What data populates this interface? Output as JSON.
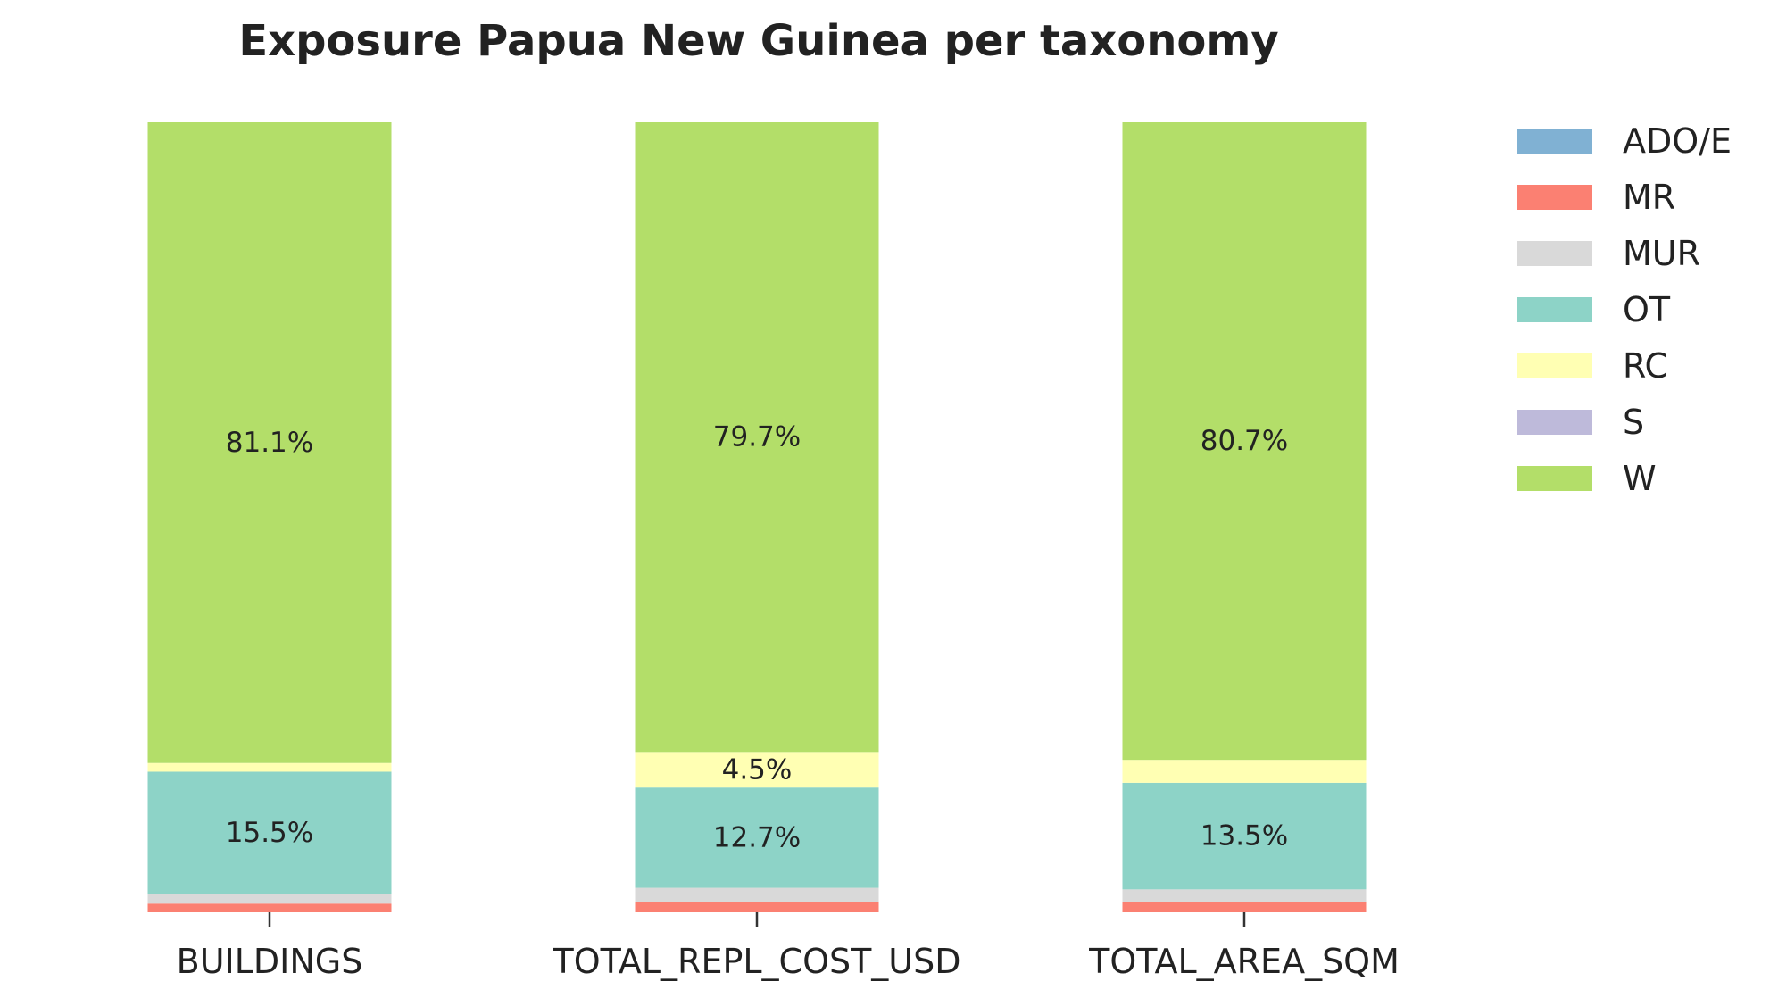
{
  "chart_data": {
    "type": "bar",
    "stacked": true,
    "title": "Exposure Papua New Guinea per taxonomy",
    "xlabel": "",
    "ylabel": "",
    "ylim": [
      0,
      100
    ],
    "unit": "%",
    "legend_position": "right",
    "grid": false,
    "categories": [
      "BUILDINGS",
      "TOTAL_REPL_COST_USD",
      "TOTAL_AREA_SQM"
    ],
    "series": [
      {
        "name": "ADO/E",
        "color": "#80b1d3",
        "values": [
          0.0,
          0.0,
          0.0
        ]
      },
      {
        "name": "MR",
        "color": "#fb8072",
        "values": [
          1.1,
          1.3,
          1.3
        ]
      },
      {
        "name": "MUR",
        "color": "#d9d9d9",
        "values": [
          1.2,
          1.8,
          1.6
        ]
      },
      {
        "name": "OT",
        "color": "#8dd3c7",
        "values": [
          15.5,
          12.7,
          13.5
        ]
      },
      {
        "name": "RC",
        "color": "#ffffb3",
        "values": [
          1.1,
          4.5,
          2.9
        ]
      },
      {
        "name": "S",
        "color": "#bebada",
        "values": [
          0.0,
          0.0,
          0.0
        ]
      },
      {
        "name": "W",
        "color": "#b3de69",
        "values": [
          81.1,
          79.7,
          80.7
        ]
      }
    ],
    "data_labels": [
      {
        "category_index": 0,
        "series_index": 3,
        "text": "15.5%"
      },
      {
        "category_index": 0,
        "series_index": 6,
        "text": "81.1%"
      },
      {
        "category_index": 1,
        "series_index": 3,
        "text": "12.7%"
      },
      {
        "category_index": 1,
        "series_index": 4,
        "text": "4.5%"
      },
      {
        "category_index": 1,
        "series_index": 6,
        "text": "79.7%"
      },
      {
        "category_index": 2,
        "series_index": 3,
        "text": "13.5%"
      },
      {
        "category_index": 2,
        "series_index": 6,
        "text": "80.7%"
      }
    ]
  }
}
